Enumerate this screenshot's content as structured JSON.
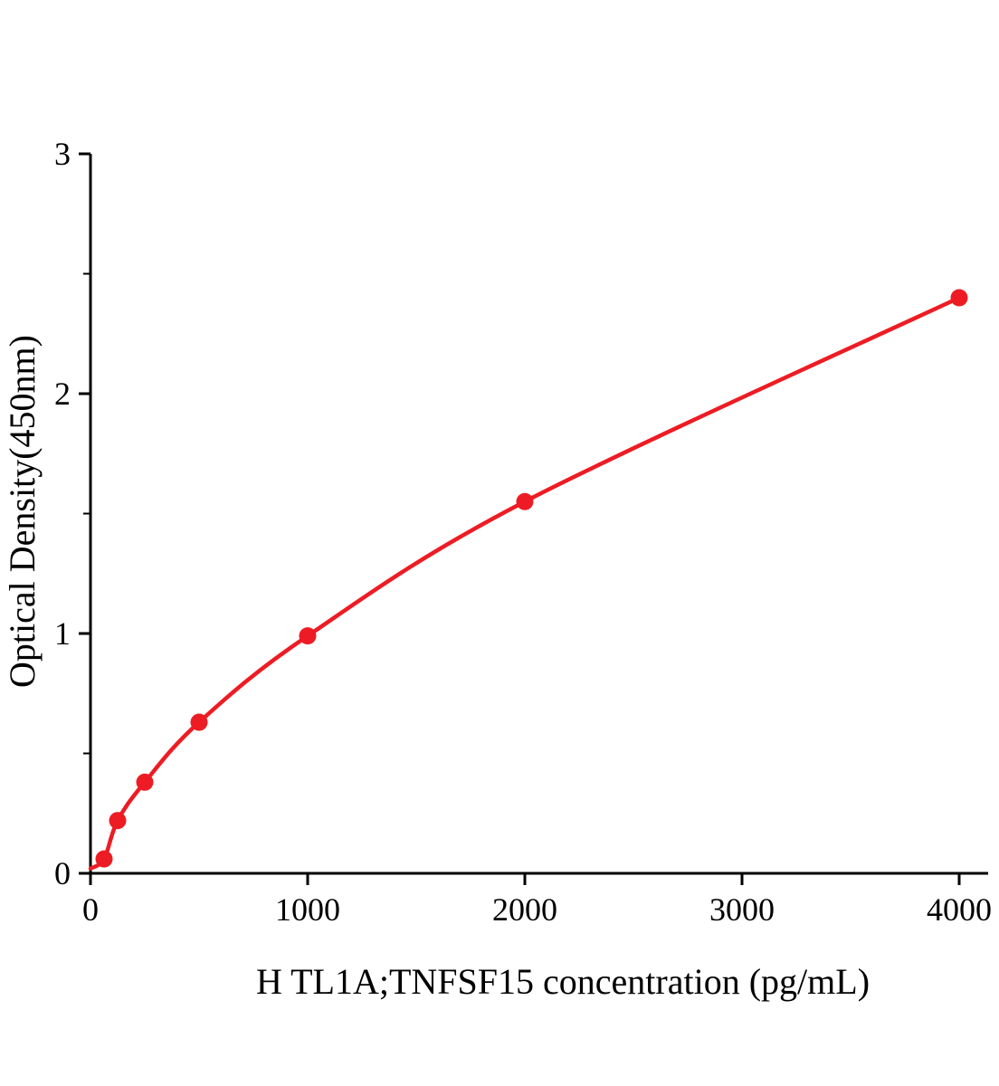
{
  "figure": {
    "background": "#ffffff"
  },
  "chart_data": {
    "type": "scatter",
    "title": "",
    "xlabel": "H TL1A;TNFSF15 concentration (pg/mL)",
    "ylabel": "Optical Density(450nm)",
    "x": [
      62.5,
      125,
      250,
      500,
      1000,
      2000,
      4000
    ],
    "y": [
      0.06,
      0.22,
      0.38,
      0.63,
      0.99,
      1.55,
      2.4
    ],
    "curve_start": {
      "x": 0,
      "y": 0.02
    },
    "xlim": [
      0,
      4133
    ],
    "ylim": [
      0,
      3
    ],
    "x_ticks": [
      0,
      1000,
      2000,
      3000,
      4000
    ],
    "y_ticks": [
      0,
      1,
      2,
      3
    ],
    "y_minor_ticks": [
      0.5,
      1.5,
      2.5
    ],
    "legend": "none",
    "grid": "off",
    "line_color": "#ed1c24",
    "point_color": "#ed1c24",
    "axis_color": "#000000"
  }
}
